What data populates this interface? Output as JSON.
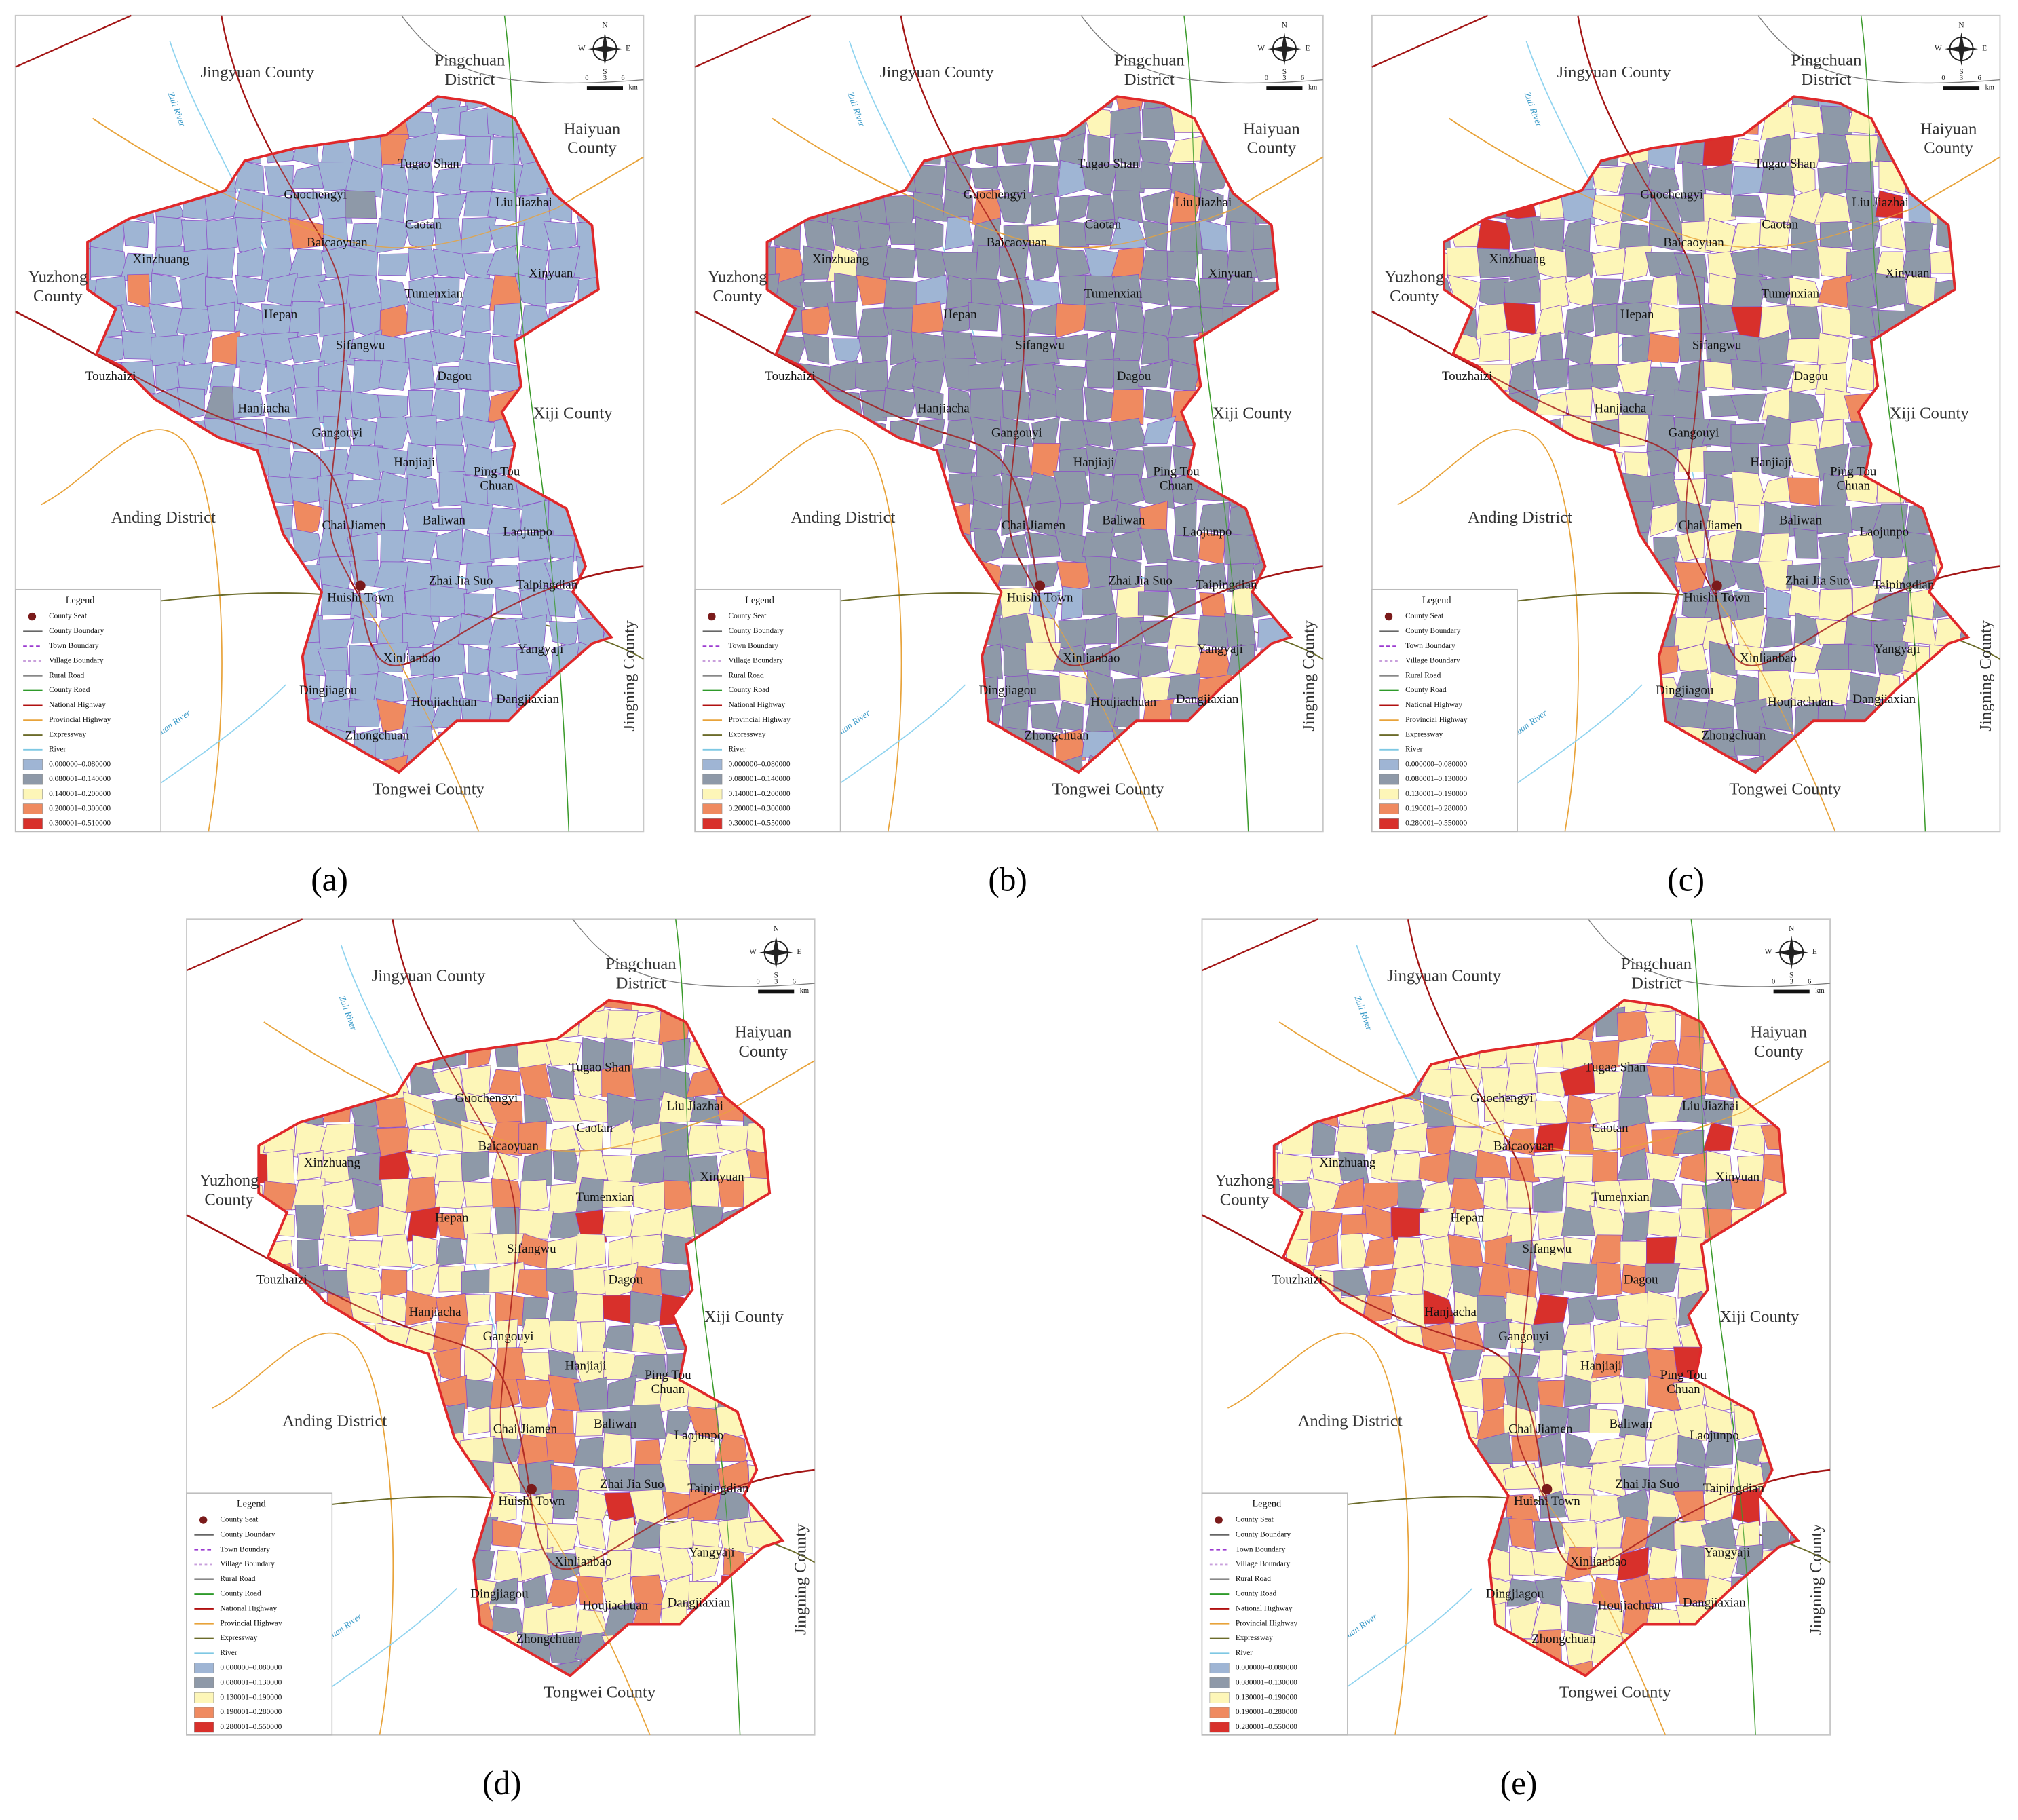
{
  "figure": {
    "maps": [
      {
        "label": "(a)",
        "ranges": [
          "0.000000–0.080000",
          "0.080001–0.140000",
          "0.140001–0.200000",
          "0.200001–0.300000",
          "0.300001–0.510000"
        ]
      },
      {
        "label": "(b)",
        "ranges": [
          "0.000000–0.080000",
          "0.080001–0.140000",
          "0.140001–0.200000",
          "0.200001–0.300000",
          "0.300001–0.550000"
        ]
      },
      {
        "label": "(c)",
        "ranges": [
          "0.000000–0.080000",
          "0.080001–0.130000",
          "0.130001–0.190000",
          "0.190001–0.280000",
          "0.280001–0.550000"
        ]
      },
      {
        "label": "(d)",
        "ranges": [
          "0.000000–0.080000",
          "0.080001–0.130000",
          "0.130001–0.190000",
          "0.190001–0.280000",
          "0.280001–0.550000"
        ]
      },
      {
        "label": "(e)",
        "ranges": [
          "0.000000–0.080000",
          "0.080001–0.130000",
          "0.130001–0.190000",
          "0.190001–0.280000",
          "0.280001–0.550000"
        ]
      }
    ],
    "legend": {
      "title": "Legend",
      "items": [
        "County Seat",
        "County Boundary",
        "Town Boundary",
        "Village Boundary",
        "Rural Road",
        "County Road",
        "National Highway",
        "Provincial Highway",
        "Expressway",
        "River"
      ],
      "class_colors": [
        "#9fb5d4",
        "#8e99a8",
        "#fdf6b8",
        "#ef8a60",
        "#d8302b"
      ]
    },
    "places": {
      "regions": [
        [
          "Jingyuan County"
        ],
        [
          "Pingchuan",
          "District"
        ],
        [
          "Haiyuan",
          "County"
        ],
        [
          "Yuzhong",
          "County"
        ],
        [
          "Xiji County"
        ],
        [
          "Anding District"
        ],
        [
          "Tongwei County"
        ],
        [
          "Jingning County"
        ]
      ],
      "rivers": [
        "Zuli River",
        "Guanchuan River"
      ],
      "towns": [
        "Tugao Shan",
        "Guochengyi",
        "Liu Jiazhai",
        "Baicaoyuan",
        "Caotan",
        "Xinzhuang",
        "Xinyuan",
        "Hepan",
        "Tumenxian",
        "Touzhaizi",
        "Sifangwu",
        "Dagou",
        "Hanjiacha",
        "Gangouyi",
        "Hanjiaji",
        "Ping Tou",
        "Chuan",
        "Chai Jiamen",
        "Baliwan",
        "Laojunpo",
        "Huishi Town",
        "Zhai Jia Suo",
        "Taipingdian",
        "Yangyaji",
        "Xinlianbao",
        "Dingjiagou",
        "Dangjiaxian",
        "Houjiachuan",
        "Zhongchuan"
      ]
    },
    "compass": [
      "N",
      "S",
      "W",
      "E"
    ],
    "scale": [
      "0",
      "3",
      "6",
      "km"
    ]
  }
}
